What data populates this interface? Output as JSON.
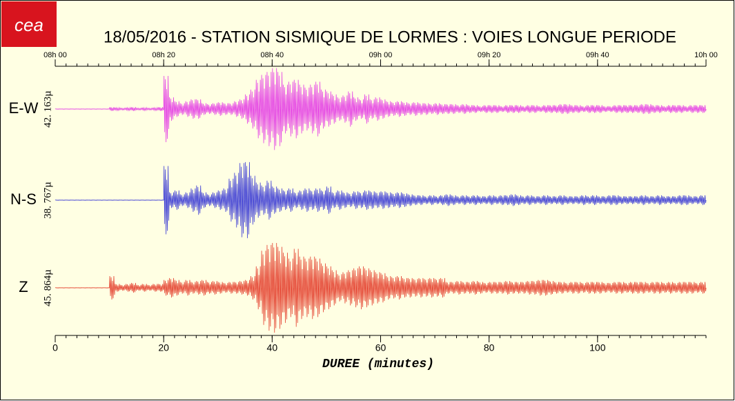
{
  "logo": {
    "text": "cea"
  },
  "chart_data": {
    "type": "seismogram",
    "title": "18/05/2016  -  STATION SISMIQUE DE LORMES : VOIES LONGUE PERIODE",
    "x_label": "DUREE (minutes)",
    "xlim": [
      0,
      120
    ],
    "xticks": [
      0,
      20,
      40,
      60,
      80,
      100
    ],
    "x2ticks": [
      {
        "value": 0,
        "label": "08h 00"
      },
      {
        "value": 20,
        "label": "08h 20"
      },
      {
        "value": 40,
        "label": "08h 40"
      },
      {
        "value": 60,
        "label": "09h 00"
      },
      {
        "value": 80,
        "label": "09h 20"
      },
      {
        "value": 100,
        "label": "09h 40"
      },
      {
        "value": 120,
        "label": "10h 00"
      }
    ],
    "xminor": 2,
    "x": [
      0,
      1,
      2,
      3,
      4,
      5,
      6,
      7,
      8,
      9,
      10,
      11,
      12,
      13,
      14,
      15,
      16,
      17,
      18,
      19,
      20,
      21,
      22,
      23,
      24,
      25,
      26,
      27,
      28,
      29,
      30,
      31,
      32,
      33,
      34,
      35,
      36,
      37,
      38,
      39,
      40,
      41,
      42,
      43,
      44,
      45,
      46,
      47,
      48,
      49,
      50,
      51,
      52,
      53,
      54,
      55,
      56,
      57,
      58,
      59,
      60,
      61,
      62,
      63,
      64,
      65,
      66,
      67,
      68,
      69,
      70,
      71,
      72,
      73,
      74,
      75,
      76,
      77,
      78,
      79,
      80,
      81,
      82,
      83,
      84,
      85,
      86,
      87,
      88,
      89,
      90,
      91,
      92,
      93,
      94,
      95,
      96,
      97,
      98,
      99,
      100,
      101,
      102,
      103,
      104,
      105,
      106,
      107,
      108,
      109,
      110,
      111,
      112,
      113,
      114,
      115,
      116,
      117,
      118,
      119
    ],
    "series": [
      {
        "name": "E-W",
        "scale_label": "42. 163µ",
        "color": "#e43ee4",
        "ylim": [
          -46,
          46
        ],
        "values": [
          0.3,
          0.3,
          0.3,
          0.3,
          0.3,
          0.3,
          0.3,
          0.3,
          0.3,
          0.3,
          2,
          1.5,
          1,
          1.5,
          2,
          1,
          1.5,
          1,
          1.5,
          2,
          34,
          12,
          8,
          6,
          8,
          10,
          10,
          6,
          5,
          6,
          7,
          6,
          6,
          8,
          10,
          15,
          20,
          30,
          35,
          38,
          42,
          38,
          25,
          28,
          30,
          25,
          22,
          25,
          28,
          20,
          18,
          15,
          12,
          14,
          18,
          12,
          10,
          15,
          10,
          12,
          10,
          8,
          7,
          8,
          7,
          6,
          7,
          6,
          6,
          5,
          6,
          5,
          5,
          5,
          4,
          5,
          4,
          4,
          3,
          4,
          4,
          4,
          3,
          4,
          4,
          4,
          3,
          4,
          4,
          3,
          4,
          4,
          4,
          5,
          5,
          4,
          4,
          3,
          4,
          4,
          4,
          3,
          3,
          4,
          4,
          4,
          4,
          4,
          5,
          5,
          4,
          4,
          3,
          4,
          4,
          4,
          3,
          4,
          4,
          4
        ]
      },
      {
        "name": "N-S",
        "scale_label": "38. 767µ",
        "color": "#3c3cd4",
        "ylim": [
          -46,
          46
        ],
        "values": [
          0.3,
          0.3,
          0.3,
          0.3,
          0.3,
          0.3,
          0.3,
          0.3,
          0.3,
          0.3,
          0.3,
          0.3,
          0.3,
          0.3,
          0.3,
          0.3,
          0.3,
          0.3,
          0.3,
          0.3,
          35,
          8,
          10,
          6,
          8,
          12,
          15,
          8,
          6,
          8,
          10,
          12,
          22,
          28,
          38,
          39,
          25,
          18,
          15,
          20,
          14,
          12,
          10,
          12,
          8,
          10,
          12,
          10,
          12,
          10,
          14,
          8,
          10,
          8,
          7,
          9,
          8,
          10,
          9,
          8,
          9,
          8,
          7,
          8,
          7,
          6,
          5,
          5,
          4,
          5,
          4,
          5,
          6,
          5,
          4,
          5,
          4,
          5,
          4,
          4,
          5,
          4,
          5,
          5,
          6,
          5,
          4,
          5,
          4,
          4,
          5,
          4,
          4,
          5,
          4,
          4,
          4,
          5,
          4,
          5,
          4,
          4,
          5,
          5,
          4,
          4,
          4,
          4,
          5,
          4,
          4,
          5,
          4,
          4,
          4,
          5,
          5,
          4,
          4,
          5
        ]
      },
      {
        "name": "Z",
        "scale_label": "45. 864µ",
        "color": "#e4402e",
        "ylim": [
          -46,
          46
        ],
        "values": [
          0.3,
          0.3,
          0.3,
          0.3,
          0.3,
          0.3,
          0.3,
          0.3,
          0.3,
          0.3,
          12,
          4,
          3,
          4,
          5,
          3,
          4,
          3,
          4,
          4,
          8,
          10,
          8,
          6,
          8,
          6,
          7,
          8,
          6,
          7,
          6,
          5,
          6,
          6,
          7,
          8,
          12,
          22,
          38,
          44,
          46,
          42,
          36,
          30,
          40,
          32,
          30,
          32,
          30,
          25,
          22,
          18,
          14,
          16,
          18,
          20,
          22,
          20,
          18,
          16,
          15,
          12,
          11,
          12,
          10,
          10,
          9,
          10,
          9,
          10,
          9,
          10,
          6,
          6,
          7,
          6,
          6,
          7,
          6,
          5,
          6,
          6,
          6,
          7,
          6,
          6,
          6,
          7,
          7,
          8,
          8,
          7,
          6,
          6,
          5,
          6,
          6,
          5,
          6,
          6,
          6,
          5,
          5,
          6,
          6,
          5,
          6,
          6,
          6,
          5,
          6,
          6,
          5,
          6,
          5,
          6,
          6,
          6,
          5,
          6
        ]
      }
    ]
  }
}
